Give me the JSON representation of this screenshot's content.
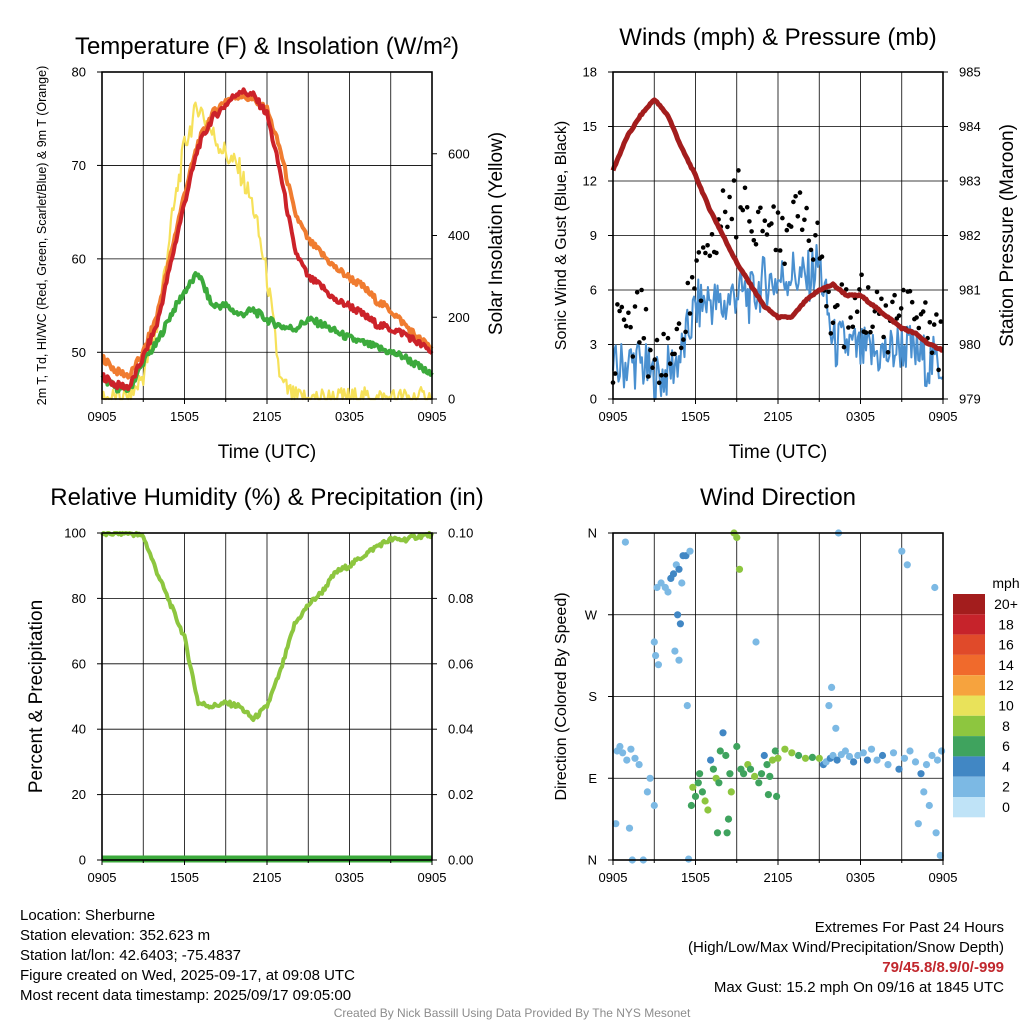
{
  "chart_data": [
    {
      "type": "line",
      "title": "Temperature (F) & Insolation (W/m²)",
      "xlabel": "Time (UTC)",
      "ylabel": "2m T, Td, HI/WC (Red, Green, Scarlet/Blue) & 9m T (Orange)",
      "y2label": "Solar Insolation (Yellow)",
      "x_ticks": [
        "0905",
        "1505",
        "2105",
        "0305",
        "0905"
      ],
      "ylim": [
        45,
        80
      ],
      "y_ticks": [
        50,
        60,
        70,
        80
      ],
      "y2lim": [
        0,
        800
      ],
      "y2_ticks": [
        0,
        200,
        400,
        600
      ],
      "grid": true,
      "hours": [
        0,
        1,
        2,
        3,
        4,
        5,
        6,
        7,
        8,
        9,
        10,
        11,
        12,
        13,
        14,
        15,
        16,
        17,
        18,
        19,
        20,
        21,
        22,
        23,
        24
      ],
      "series": [
        {
          "name": "2m T",
          "color": "#cc2229",
          "axis": "left",
          "values": [
            47.5,
            46.5,
            46.3,
            49.5,
            53,
            59.5,
            66,
            72,
            75,
            76.5,
            78,
            77.5,
            75.5,
            69,
            61,
            58,
            57,
            55.5,
            55,
            54,
            53,
            52.5,
            52,
            51,
            50
          ]
        },
        {
          "name": "Td",
          "color": "#3caa3c",
          "axis": "left",
          "values": [
            47.3,
            46.2,
            46,
            49,
            51,
            54,
            56.5,
            58.5,
            55,
            55,
            54,
            54.5,
            53.5,
            52.8,
            52.5,
            53.5,
            53,
            52.2,
            51.5,
            51,
            50.5,
            50,
            49.5,
            48.5,
            47.5
          ]
        },
        {
          "name": "9m T",
          "color": "#f07c30",
          "axis": "left",
          "values": [
            49.5,
            48,
            47.5,
            50,
            54,
            60.5,
            67,
            72.5,
            75.5,
            77,
            77.5,
            77,
            76,
            71.5,
            65,
            62,
            60.5,
            59,
            58,
            57,
            55.5,
            54.5,
            53,
            51.5,
            50.5
          ]
        },
        {
          "name": "Solar Insolation",
          "color": "#f6e15a",
          "axis": "right",
          "values": [
            0,
            0,
            0,
            60,
            180,
            420,
            620,
            720,
            650,
            600,
            560,
            470,
            300,
            40,
            0,
            0,
            0,
            0,
            0,
            0,
            0,
            0,
            0,
            0,
            0
          ]
        }
      ]
    },
    {
      "type": "line",
      "title": "Winds (mph) & Pressure (mb)",
      "xlabel": "Time (UTC)",
      "ylabel": "Sonic Wind & Gust (Blue, Black)",
      "y2label": "Station Pressure (Maroon)",
      "x_ticks": [
        "0905",
        "1505",
        "2105",
        "0305",
        "0905"
      ],
      "ylim": [
        0,
        18
      ],
      "y_ticks": [
        0,
        3,
        6,
        9,
        12,
        15,
        18
      ],
      "y2lim": [
        979,
        985
      ],
      "y2_ticks": [
        979,
        980,
        981,
        982,
        983,
        984,
        985
      ],
      "grid": true,
      "hours": [
        0,
        1,
        2,
        3,
        4,
        5,
        6,
        7,
        8,
        9,
        10,
        11,
        12,
        13,
        14,
        15,
        16,
        17,
        18,
        19,
        20,
        21,
        22,
        23,
        24
      ],
      "series": [
        {
          "name": "Sonic Wind",
          "color": "#4a90d0",
          "axis": "left",
          "values": [
            1.5,
            2,
            2,
            1,
            1.5,
            2.5,
            5,
            5.5,
            5,
            6,
            5.5,
            6.5,
            6.5,
            7,
            6.5,
            7.5,
            3,
            3,
            2.5,
            2.5,
            2.5,
            3,
            2.5,
            2,
            2
          ]
        },
        {
          "name": "Gust",
          "color": "#000000",
          "axis": "left",
          "values": [
            2.5,
            3.5,
            4,
            1.5,
            2,
            3,
            6,
            8.5,
            9.5,
            10.5,
            9,
            10.5,
            9,
            9,
            9,
            8.5,
            4,
            4,
            4.5,
            4,
            3.5,
            3.8,
            3.5,
            3,
            3
          ]
        },
        {
          "name": "Station Pressure",
          "color": "#a31d1d",
          "axis": "right",
          "values": [
            983.2,
            983.8,
            984.2,
            984.5,
            984.2,
            983.6,
            983.1,
            982.5,
            982,
            981.5,
            981.1,
            980.7,
            980.5,
            980.5,
            980.8,
            981,
            981.1,
            980.9,
            980.9,
            980.7,
            980.5,
            980.3,
            980.2,
            980,
            979.9
          ]
        }
      ]
    },
    {
      "type": "line",
      "title": "Relative Humidity (%) & Precipitation (in)",
      "xlabel": "",
      "ylabel": "Percent & Precipitation",
      "x_ticks": [
        "0905",
        "1505",
        "2105",
        "0305",
        "0905"
      ],
      "ylim": [
        0,
        100
      ],
      "y_ticks": [
        0,
        20,
        40,
        60,
        80,
        100
      ],
      "y2lim": [
        0,
        0.1
      ],
      "y2_ticks": [
        "0.00",
        "0.02",
        "0.04",
        "0.06",
        "0.08",
        "0.10"
      ],
      "grid": true,
      "hours": [
        0,
        1,
        2,
        3,
        4,
        5,
        6,
        7,
        8,
        9,
        10,
        11,
        12,
        13,
        14,
        15,
        16,
        17,
        18,
        19,
        20,
        21,
        22,
        23,
        24
      ],
      "series": [
        {
          "name": "Relative Humidity",
          "color": "#8dc63f",
          "axis": "left",
          "values": [
            99.5,
            100,
            100,
            99,
            88,
            78,
            68,
            48,
            47,
            48,
            47,
            43,
            47,
            58,
            72,
            78,
            82,
            88,
            90,
            93,
            96,
            98,
            98,
            99,
            99.5
          ]
        },
        {
          "name": "Precipitation",
          "color": "#3caa3c",
          "axis": "right",
          "values": [
            0,
            0,
            0,
            0,
            0,
            0,
            0,
            0,
            0,
            0,
            0,
            0,
            0,
            0,
            0,
            0,
            0,
            0,
            0,
            0,
            0,
            0,
            0,
            0,
            0
          ]
        }
      ]
    },
    {
      "type": "scatter",
      "title": "Wind Direction",
      "xlabel": "",
      "ylabel": "Direction (Colored By Speed)",
      "x_ticks": [
        "0905",
        "1505",
        "2105",
        "0305",
        "0905"
      ],
      "ylim": [
        0,
        360
      ],
      "y_ticks": [
        {
          "value": 0,
          "label": "N"
        },
        {
          "value": 90,
          "label": "E"
        },
        {
          "value": 180,
          "label": "S"
        },
        {
          "value": 270,
          "label": "W"
        },
        {
          "value": 360,
          "label": "N"
        }
      ],
      "grid": true,
      "legend": {
        "title": "mph",
        "labels": [
          "20+",
          "18",
          "16",
          "14",
          "12",
          "10",
          "8",
          "6",
          "4",
          "2",
          "0"
        ],
        "colors": [
          "#a31d1d",
          "#c6232b",
          "#e04a2a",
          "#f06a2c",
          "#f6a33e",
          "#e9e25a",
          "#8dc63f",
          "#3fa35e",
          "#4187c4",
          "#7cb9e4",
          "#bfe3f7"
        ],
        "placement": "right"
      },
      "points": [
        [
          0.3,
          120,
          1
        ],
        [
          0.5,
          125,
          2
        ],
        [
          0.7,
          118,
          1
        ],
        [
          1.0,
          110,
          2
        ],
        [
          1.3,
          122,
          1
        ],
        [
          1.6,
          112,
          2
        ],
        [
          1.9,
          105,
          1
        ],
        [
          0.2,
          40,
          1
        ],
        [
          1.2,
          35,
          1
        ],
        [
          1.4,
          0,
          1
        ],
        [
          0.9,
          350,
          1
        ],
        [
          2.2,
          0,
          1
        ],
        [
          2.7,
          90,
          1
        ],
        [
          3.0,
          60,
          2
        ],
        [
          2.5,
          75,
          1
        ],
        [
          3.0,
          240,
          1
        ],
        [
          3.1,
          225,
          1
        ],
        [
          3.3,
          215,
          1
        ],
        [
          3.2,
          300,
          1
        ],
        [
          3.5,
          305,
          1
        ],
        [
          3.8,
          300,
          2
        ],
        [
          4.0,
          295,
          1
        ],
        [
          4.2,
          310,
          3
        ],
        [
          4.4,
          315,
          3
        ],
        [
          4.6,
          325,
          2
        ],
        [
          4.8,
          320,
          4
        ],
        [
          5.1,
          335,
          4
        ],
        [
          5.3,
          335,
          3
        ],
        [
          5.6,
          340,
          2
        ],
        [
          4.7,
          270,
          3
        ],
        [
          4.9,
          260,
          3
        ],
        [
          4.5,
          230,
          2
        ],
        [
          4.8,
          220,
          1
        ],
        [
          5.0,
          305,
          2
        ],
        [
          5.4,
          170,
          2
        ],
        [
          5.5,
          1,
          2
        ],
        [
          5.7,
          60,
          5
        ],
        [
          5.8,
          80,
          7
        ],
        [
          6.0,
          70,
          6
        ],
        [
          6.2,
          85,
          5
        ],
        [
          6.3,
          95,
          6
        ],
        [
          6.5,
          75,
          5
        ],
        [
          6.7,
          65,
          8
        ],
        [
          6.9,
          55,
          7
        ],
        [
          7.1,
          110,
          4
        ],
        [
          7.3,
          100,
          6
        ],
        [
          7.5,
          90,
          7
        ],
        [
          7.7,
          85,
          6
        ],
        [
          7.8,
          120,
          6
        ],
        [
          8.0,
          140,
          4
        ],
        [
          8.2,
          115,
          5
        ],
        [
          8.3,
          30,
          6
        ],
        [
          8.5,
          95,
          5
        ],
        [
          8.6,
          75,
          7
        ],
        [
          8.8,
          360,
          7
        ],
        [
          9.0,
          355,
          8
        ],
        [
          9.2,
          320,
          7
        ],
        [
          9.0,
          125,
          6
        ],
        [
          8.4,
          45,
          5
        ],
        [
          7.6,
          30,
          6
        ],
        [
          9.3,
          100,
          5
        ],
        [
          9.5,
          95,
          6
        ],
        [
          9.8,
          105,
          7
        ],
        [
          10.0,
          100,
          6
        ],
        [
          10.3,
          92,
          7
        ],
        [
          10.6,
          85,
          6
        ],
        [
          10.8,
          95,
          5
        ],
        [
          11.0,
          115,
          4
        ],
        [
          11.2,
          105,
          6
        ],
        [
          11.4,
          92,
          5
        ],
        [
          11.6,
          110,
          7
        ],
        [
          11.8,
          120,
          6
        ],
        [
          12.0,
          112,
          7
        ],
        [
          11.3,
          72,
          5
        ],
        [
          11.9,
          70,
          6
        ],
        [
          10.4,
          240,
          2
        ],
        [
          12.5,
          122,
          7
        ],
        [
          13.0,
          118,
          7
        ],
        [
          13.5,
          115,
          6
        ],
        [
          14.0,
          112,
          7
        ],
        [
          14.5,
          113,
          6
        ],
        [
          15.0,
          112,
          7
        ],
        [
          15.3,
          105,
          3
        ],
        [
          15.5,
          108,
          2
        ],
        [
          15.8,
          112,
          3
        ],
        [
          16.0,
          115,
          2
        ],
        [
          16.3,
          110,
          3
        ],
        [
          16.6,
          116,
          2
        ],
        [
          16.9,
          120,
          1
        ],
        [
          17.2,
          114,
          2
        ],
        [
          17.5,
          108,
          3
        ],
        [
          17.8,
          115,
          2
        ],
        [
          18.2,
          118,
          2
        ],
        [
          18.5,
          110,
          3
        ],
        [
          18.8,
          122,
          1
        ],
        [
          16.4,
          360,
          2
        ],
        [
          15.9,
          190,
          2
        ],
        [
          15.7,
          170,
          2
        ],
        [
          16.2,
          145,
          2
        ],
        [
          19.2,
          110,
          2
        ],
        [
          19.6,
          115,
          3
        ],
        [
          20.0,
          105,
          2
        ],
        [
          20.4,
          118,
          2
        ],
        [
          20.8,
          100,
          3
        ],
        [
          21.2,
          112,
          2
        ],
        [
          21.6,
          120,
          1
        ],
        [
          22.0,
          108,
          2
        ],
        [
          22.4,
          95,
          3
        ],
        [
          22.8,
          105,
          2
        ],
        [
          23.2,
          115,
          2
        ],
        [
          23.6,
          110,
          1
        ],
        [
          23.9,
          120,
          2
        ],
        [
          21.0,
          340,
          1
        ],
        [
          21.4,
          325,
          1
        ],
        [
          23.4,
          300,
          1
        ],
        [
          22.2,
          40,
          1
        ],
        [
          23.0,
          60,
          1
        ],
        [
          23.8,
          5,
          1
        ],
        [
          23.5,
          30,
          1
        ],
        [
          22.6,
          75,
          1
        ]
      ]
    }
  ],
  "footer": {
    "location": "Location: Sherburne",
    "elevation": "Station elevation: 352.623 m",
    "latlon": "Station lat/lon: 42.6403; -75.4837",
    "created": "Figure created on Wed, 2025-09-17, at 09:08 UTC",
    "recent": "Most recent data timestamp: 2025/09/17 09:05:00",
    "extremes_title": "Extremes For Past 24 Hours",
    "extremes_legend": "(High/Low/Max Wind/Precipitation/Snow Depth)",
    "extremes_values": "79/45.8/8.9/0/-999",
    "max_gust": "Max Gust: 15.2 mph On 09/16 at 1845 UTC",
    "credit": "Created By Nick Bassill Using Data Provided By The NYS Mesonet"
  }
}
